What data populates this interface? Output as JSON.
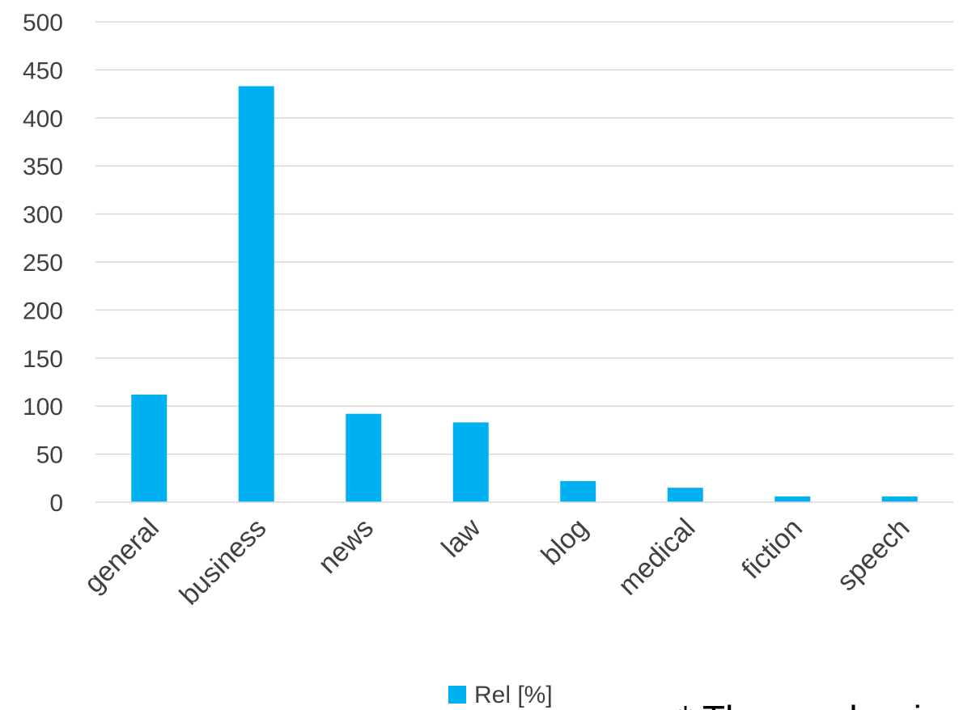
{
  "chart_data": {
    "type": "bar",
    "categories": [
      "general",
      "business",
      "news",
      "law",
      "blog",
      "medical",
      "fiction",
      "speech"
    ],
    "series": [
      {
        "name": "Rel [%]",
        "values": [
          112,
          433,
          92,
          83,
          22,
          15,
          6,
          6
        ],
        "color": "#00b0f0"
      }
    ],
    "ylim": [
      0,
      500
    ],
    "yticks": [
      0,
      50,
      100,
      150,
      200,
      250,
      300,
      350,
      400,
      450,
      500
    ],
    "grid": true,
    "legend_position": "bottom",
    "gridline_color": "#d9d9d9",
    "tick_label_color": "#404040"
  },
  "footnote": "* The number in"
}
